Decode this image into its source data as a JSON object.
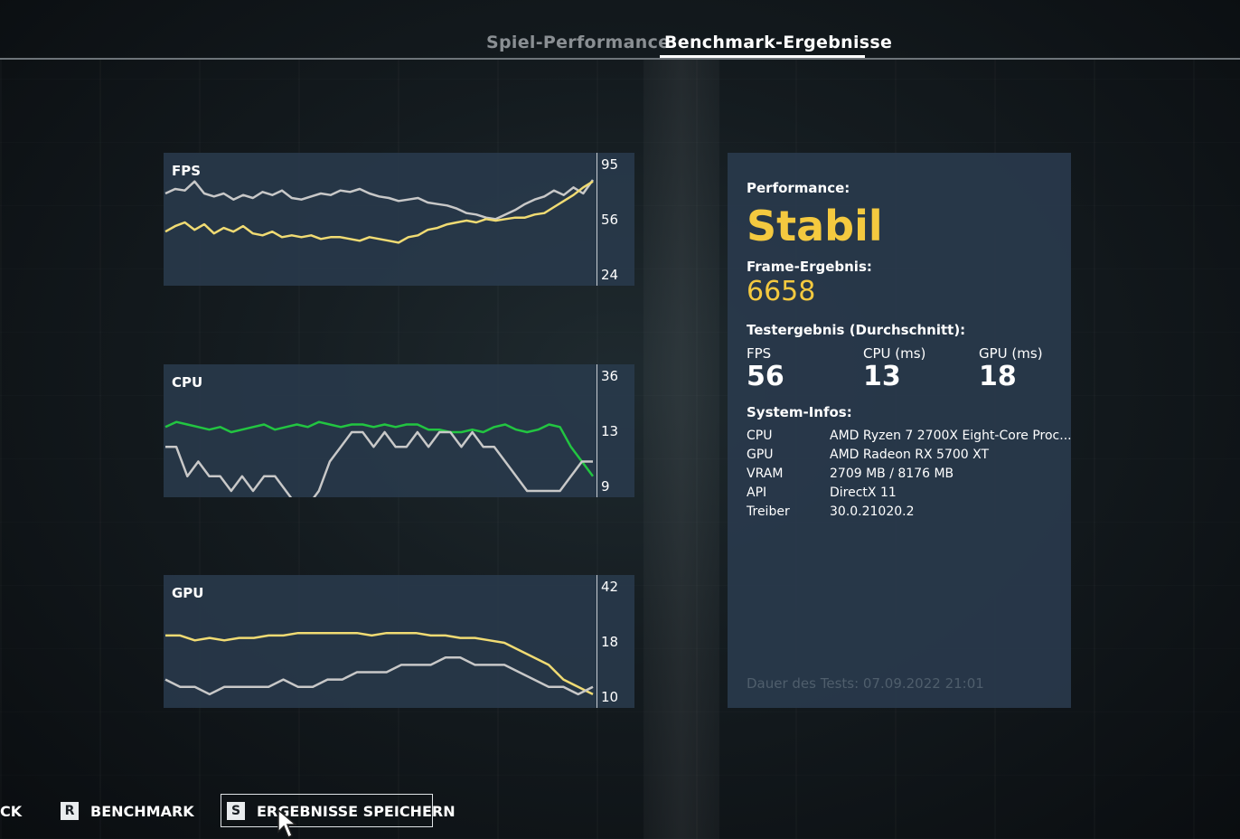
{
  "tabs": {
    "performance": "Spiel-Performance",
    "benchmark": "Benchmark-Ergebnisse"
  },
  "charts": {
    "fps": {
      "label": "FPS",
      "ticks": [
        "95",
        "56",
        "24"
      ]
    },
    "cpu": {
      "label": "CPU",
      "ticks": [
        "36",
        "13",
        "9"
      ]
    },
    "gpu": {
      "label": "GPU",
      "ticks": [
        "42",
        "18",
        "10"
      ]
    }
  },
  "chart_data": [
    {
      "type": "line",
      "title": "FPS",
      "yticks": [
        95,
        56,
        24
      ],
      "series": [
        {
          "color": "#c8c8c8",
          "values": [
            74,
            77,
            76,
            82,
            74,
            72,
            74,
            70,
            73,
            71,
            75,
            73,
            76,
            71,
            70,
            72,
            74,
            73,
            76,
            75,
            77,
            74,
            72,
            71,
            69,
            70,
            71,
            68,
            67,
            66,
            64,
            61,
            60,
            58,
            57,
            60,
            63,
            67,
            70,
            72,
            76,
            73,
            78,
            74,
            83
          ]
        },
        {
          "color": "#f0db73",
          "values": [
            50,
            53,
            55,
            51,
            54,
            49,
            52,
            50,
            53,
            49,
            48,
            50,
            47,
            48,
            47,
            48,
            46,
            47,
            47,
            46,
            45,
            47,
            46,
            45,
            44,
            47,
            48,
            51,
            52,
            54,
            55,
            56,
            55,
            57,
            56,
            57,
            58,
            58,
            60,
            61,
            65,
            69,
            73,
            78,
            82
          ]
        }
      ]
    },
    {
      "type": "line",
      "title": "CPU",
      "yticks": [
        36,
        13,
        9
      ],
      "series": [
        {
          "color": "#22c541",
          "values": [
            15,
            17,
            16,
            15,
            14,
            15,
            13,
            14,
            15,
            16,
            14,
            15,
            16,
            15,
            17,
            16,
            15,
            16,
            16,
            15,
            16,
            15,
            16,
            16,
            14,
            14,
            13,
            13,
            14,
            13,
            15,
            16,
            14,
            13,
            14,
            16,
            15,
            12,
            11,
            10
          ]
        },
        {
          "color": "#c8c8c8",
          "values": [
            12,
            12,
            10,
            11,
            10,
            10,
            9,
            10,
            9,
            10,
            10,
            9,
            8,
            8,
            9,
            11,
            12,
            13,
            13,
            12,
            13,
            12,
            12,
            13,
            12,
            13,
            13,
            12,
            13,
            12,
            12,
            11,
            10,
            9,
            9,
            9,
            9,
            10,
            11,
            11
          ]
        }
      ]
    },
    {
      "type": "line",
      "title": "GPU",
      "yticks": [
        42,
        18,
        10
      ],
      "series": [
        {
          "color": "#f0db73",
          "values": [
            21,
            21,
            19,
            20,
            19,
            20,
            20,
            21,
            21,
            22,
            22,
            22,
            22,
            22,
            21,
            22,
            22,
            22,
            21,
            21,
            20,
            20,
            19,
            18,
            17,
            16,
            15,
            13,
            12,
            11
          ]
        },
        {
          "color": "#c8c8c8",
          "values": [
            13,
            12,
            12,
            11,
            12,
            12,
            12,
            12,
            13,
            12,
            12,
            13,
            13,
            14,
            14,
            14,
            15,
            15,
            15,
            16,
            16,
            15,
            15,
            15,
            14,
            13,
            12,
            12,
            11,
            12
          ]
        }
      ]
    }
  ],
  "info": {
    "performance_label": "Performance:",
    "performance_value": "Stabil",
    "frame_label": "Frame-Ergebnis:",
    "frame_value": "6658",
    "test_label": "Testergebnis (Durchschnitt):",
    "avg": [
      {
        "label": "FPS",
        "value": "56"
      },
      {
        "label": "CPU (ms)",
        "value": "13"
      },
      {
        "label": "GPU (ms)",
        "value": "18"
      }
    ],
    "system_label": "System-Infos:",
    "system": [
      {
        "key": "CPU",
        "value": "AMD Ryzen 7 2700X Eight-Core Proc..."
      },
      {
        "key": "GPU",
        "value": "AMD Radeon RX 5700 XT"
      },
      {
        "key": "VRAM",
        "value": "2709 MB / 8176 MB"
      },
      {
        "key": "API",
        "value": "DirectX 11"
      },
      {
        "key": "Treiber",
        "value": "30.0.21020.2"
      }
    ],
    "duration": "Dauer des Tests: 07.09.2022 21:01"
  },
  "bottom": {
    "back": "CK",
    "benchmark_key": "R",
    "benchmark": "BENCHMARK",
    "save_key": "S",
    "save": "ERGEBNISSE SPEICHERN"
  }
}
